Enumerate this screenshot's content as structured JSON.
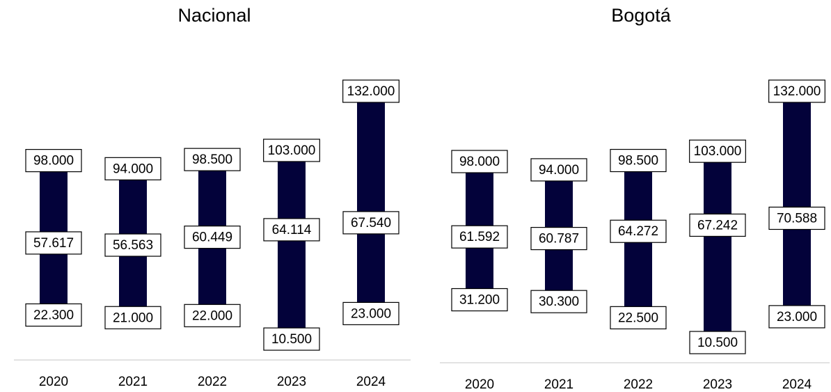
{
  "chart_data": [
    {
      "type": "range",
      "title": "Nacional",
      "categories": [
        "2020",
        "2021",
        "2022",
        "2023",
        "2024"
      ],
      "color": "#03023a",
      "high": {
        "values": [
          98000,
          94000,
          98500,
          103000,
          132000
        ],
        "value_labels": [
          "98.000",
          "94.000",
          "98.500",
          "103.000",
          "132.000"
        ]
      },
      "middle": {
        "values": [
          57617,
          56563,
          60449,
          64114,
          67540
        ],
        "value_labels": [
          "57.617",
          "56.563",
          "60.449",
          "64.114",
          "67.540"
        ]
      },
      "low": {
        "values": [
          22300,
          21000,
          22000,
          10500,
          23000
        ],
        "value_labels": [
          "22.300",
          "21.000",
          "22.000",
          "10.500",
          "23.000"
        ]
      }
    },
    {
      "type": "range",
      "title": "Bogotá",
      "categories": [
        "2020",
        "2021",
        "2022",
        "2023",
        "2024"
      ],
      "color": "#03023a",
      "high": {
        "values": [
          98000,
          94000,
          98500,
          103000,
          132000
        ],
        "value_labels": [
          "98.000",
          "94.000",
          "98.500",
          "103.000",
          "132.000"
        ]
      },
      "middle": {
        "values": [
          61592,
          60787,
          64272,
          67242,
          70588
        ],
        "value_labels": [
          "61.592",
          "60.787",
          "64.272",
          "67.242",
          "70.588"
        ]
      },
      "low": {
        "values": [
          31200,
          30300,
          22500,
          10500,
          23000
        ],
        "value_labels": [
          "31.200",
          "30.300",
          "22.500",
          "10.500",
          "23.000"
        ]
      }
    }
  ]
}
